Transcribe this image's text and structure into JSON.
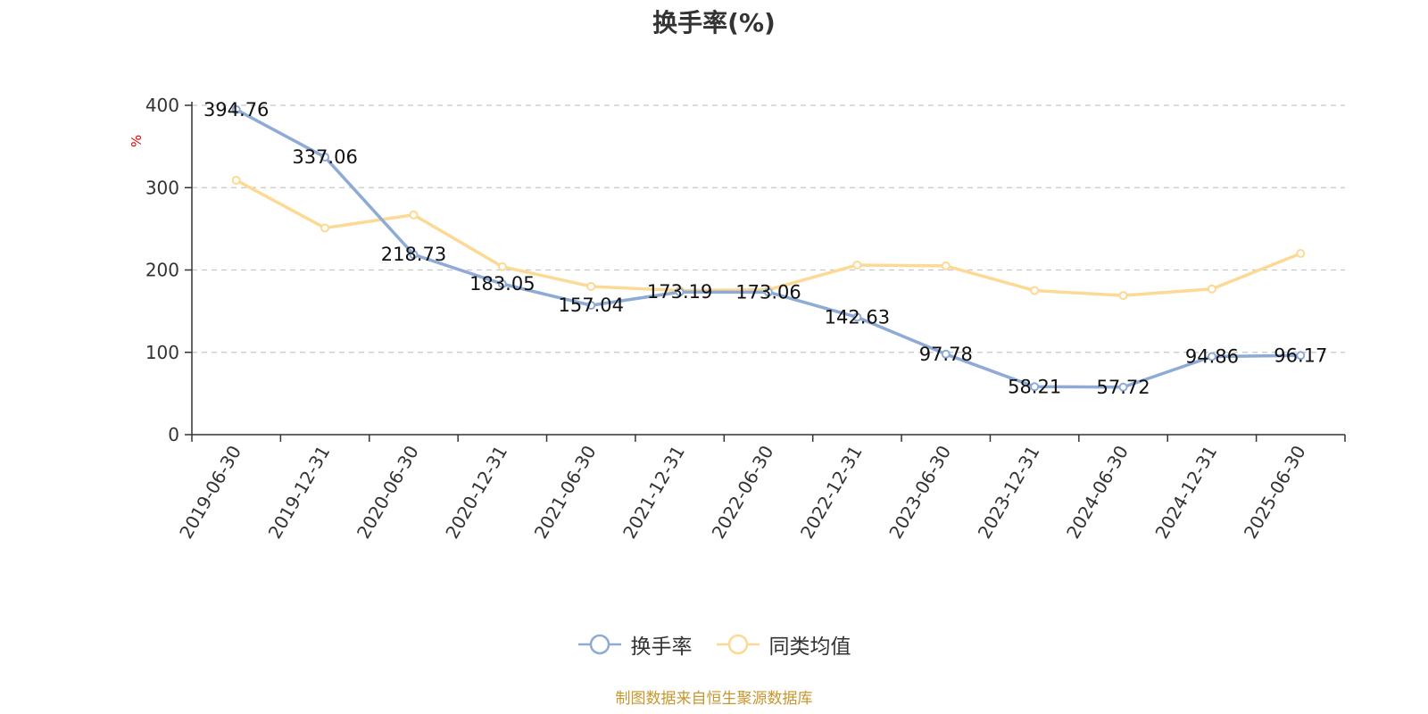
{
  "chart_data": {
    "type": "line",
    "title": "换手率(%)",
    "ylabel": "%",
    "xlabel": "",
    "ylim": [
      0,
      400
    ],
    "yticks": [
      0,
      100,
      200,
      300,
      400
    ],
    "grid": true,
    "legend_position": "bottom",
    "categories": [
      "2019-06-30",
      "2019-12-31",
      "2020-06-30",
      "2020-12-31",
      "2021-06-30",
      "2021-12-31",
      "2022-06-30",
      "2022-12-31",
      "2023-06-30",
      "2023-12-31",
      "2024-06-30",
      "2024-12-31",
      "2025-06-30"
    ],
    "series": [
      {
        "name": "换手率",
        "color": "#8eaad6",
        "values": [
          394.76,
          337.06,
          218.73,
          183.05,
          157.04,
          173.19,
          173.06,
          142.63,
          97.78,
          58.21,
          57.72,
          94.86,
          96.17
        ],
        "data_labels": [
          "394.76",
          "337.06",
          "218.73",
          "183.05",
          "157.04",
          "173.19",
          "173.06",
          "142.63",
          "97.78",
          "58.21",
          "57.72",
          "94.86",
          "96.17"
        ]
      },
      {
        "name": "同类均值",
        "color": "#fcd995",
        "values": [
          309,
          251,
          267,
          204,
          180,
          175,
          176,
          206,
          205,
          175,
          169,
          177,
          220
        ]
      }
    ]
  },
  "footer": {
    "source": "制图数据来自恒生聚源数据库",
    "source_color": "#c8962e"
  }
}
